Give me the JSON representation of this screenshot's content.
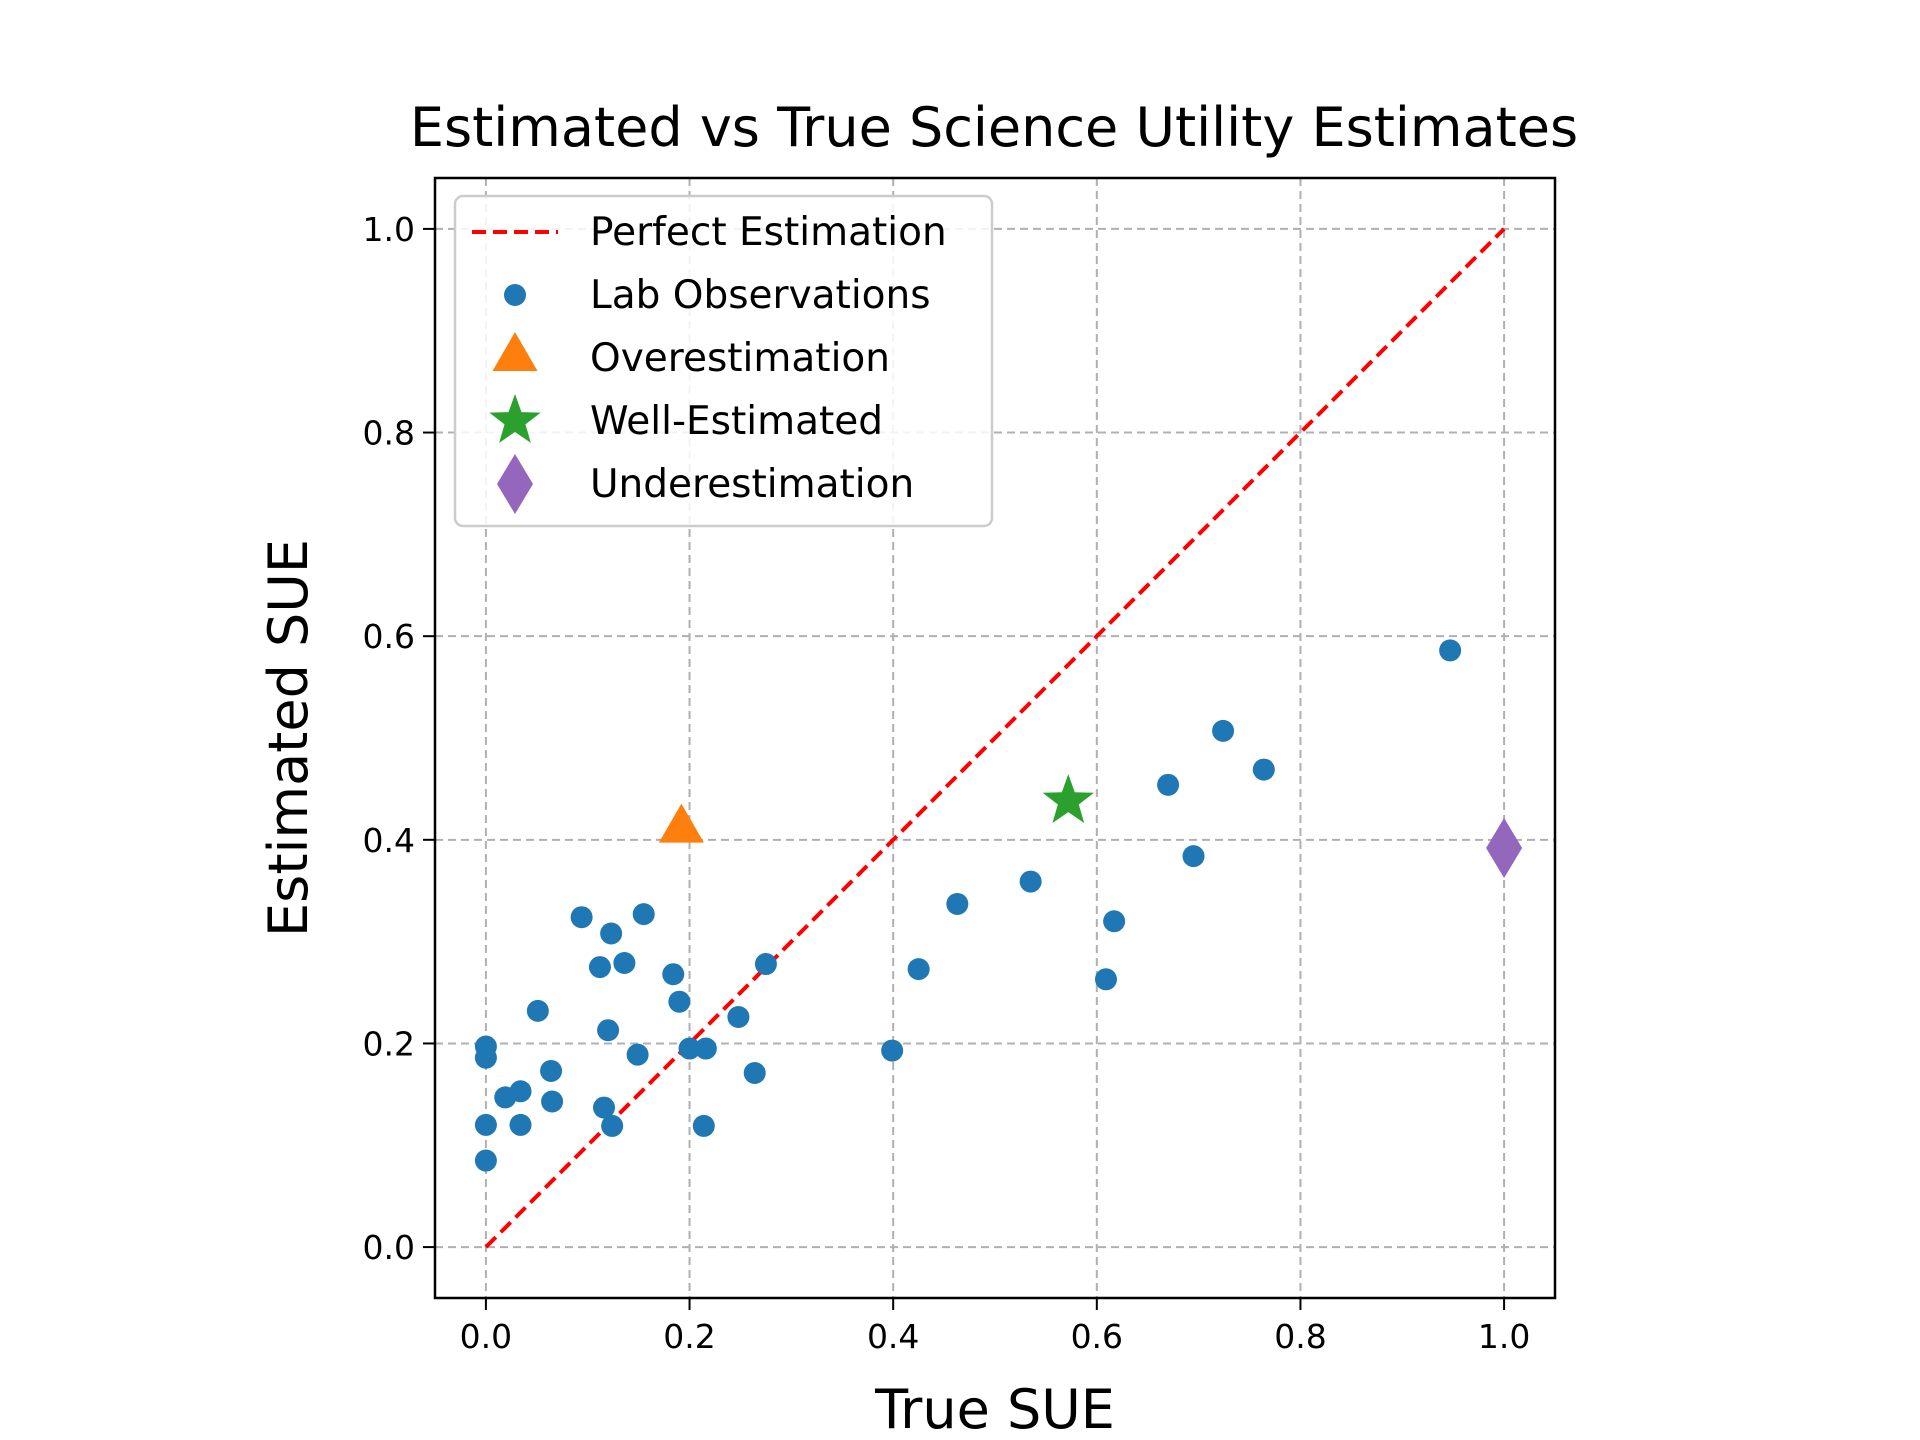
{
  "chart_data": {
    "type": "scatter",
    "title": "Estimated vs True Science Utility Estimates",
    "xlabel": "True SUE",
    "ylabel": "Estimated SUE",
    "xlim": [
      -0.05,
      1.05
    ],
    "ylim": [
      -0.05,
      1.05
    ],
    "xticks": [
      0.0,
      0.2,
      0.4,
      0.6,
      0.8,
      1.0
    ],
    "yticks": [
      0.0,
      0.2,
      0.4,
      0.6,
      0.8,
      1.0
    ],
    "xtick_labels": [
      "0.0",
      "0.2",
      "0.4",
      "0.6",
      "0.8",
      "1.0"
    ],
    "ytick_labels": [
      "0.0",
      "0.2",
      "0.4",
      "0.6",
      "0.8",
      "1.0"
    ],
    "grid": true,
    "legend_position": "upper-left",
    "series": [
      {
        "name": "Perfect Estimation",
        "kind": "line",
        "style": "dashed",
        "color": "#ff0000",
        "x": [
          0.0,
          1.0
        ],
        "y": [
          0.0,
          1.0
        ]
      },
      {
        "name": "Lab Observations",
        "kind": "scatter",
        "marker": "circle",
        "color": "#1f77b4",
        "points": [
          [
            0.0,
            0.197
          ],
          [
            0.0,
            0.186
          ],
          [
            0.0,
            0.12
          ],
          [
            0.0,
            0.085
          ],
          [
            0.019,
            0.147
          ],
          [
            0.034,
            0.153
          ],
          [
            0.034,
            0.12
          ],
          [
            0.051,
            0.232
          ],
          [
            0.064,
            0.173
          ],
          [
            0.065,
            0.143
          ],
          [
            0.094,
            0.324
          ],
          [
            0.112,
            0.275
          ],
          [
            0.116,
            0.137
          ],
          [
            0.12,
            0.213
          ],
          [
            0.123,
            0.308
          ],
          [
            0.124,
            0.119
          ],
          [
            0.136,
            0.279
          ],
          [
            0.149,
            0.189
          ],
          [
            0.155,
            0.327
          ],
          [
            0.184,
            0.268
          ],
          [
            0.19,
            0.241
          ],
          [
            0.2,
            0.195
          ],
          [
            0.216,
            0.195
          ],
          [
            0.214,
            0.119
          ],
          [
            0.248,
            0.226
          ],
          [
            0.264,
            0.171
          ],
          [
            0.275,
            0.278
          ],
          [
            0.399,
            0.193
          ],
          [
            0.425,
            0.273
          ],
          [
            0.463,
            0.337
          ],
          [
            0.535,
            0.359
          ],
          [
            0.609,
            0.263
          ],
          [
            0.617,
            0.32
          ],
          [
            0.67,
            0.454
          ],
          [
            0.695,
            0.384
          ],
          [
            0.724,
            0.507
          ],
          [
            0.764,
            0.469
          ],
          [
            0.947,
            0.586
          ]
        ]
      },
      {
        "name": "Overestimation",
        "kind": "scatter",
        "marker": "triangle",
        "color": "#ff7f0e",
        "points": [
          [
            0.192,
            0.41
          ]
        ]
      },
      {
        "name": "Well-Estimated",
        "kind": "scatter",
        "marker": "star",
        "color": "#2ca02c",
        "points": [
          [
            0.572,
            0.438
          ]
        ]
      },
      {
        "name": "Underestimation",
        "kind": "scatter",
        "marker": "diamond",
        "color": "#9467bd",
        "points": [
          [
            1.0,
            0.392
          ]
        ]
      }
    ],
    "legend": [
      "Perfect Estimation",
      "Lab Observations",
      "Overestimation",
      "Well-Estimated",
      "Underestimation"
    ]
  }
}
